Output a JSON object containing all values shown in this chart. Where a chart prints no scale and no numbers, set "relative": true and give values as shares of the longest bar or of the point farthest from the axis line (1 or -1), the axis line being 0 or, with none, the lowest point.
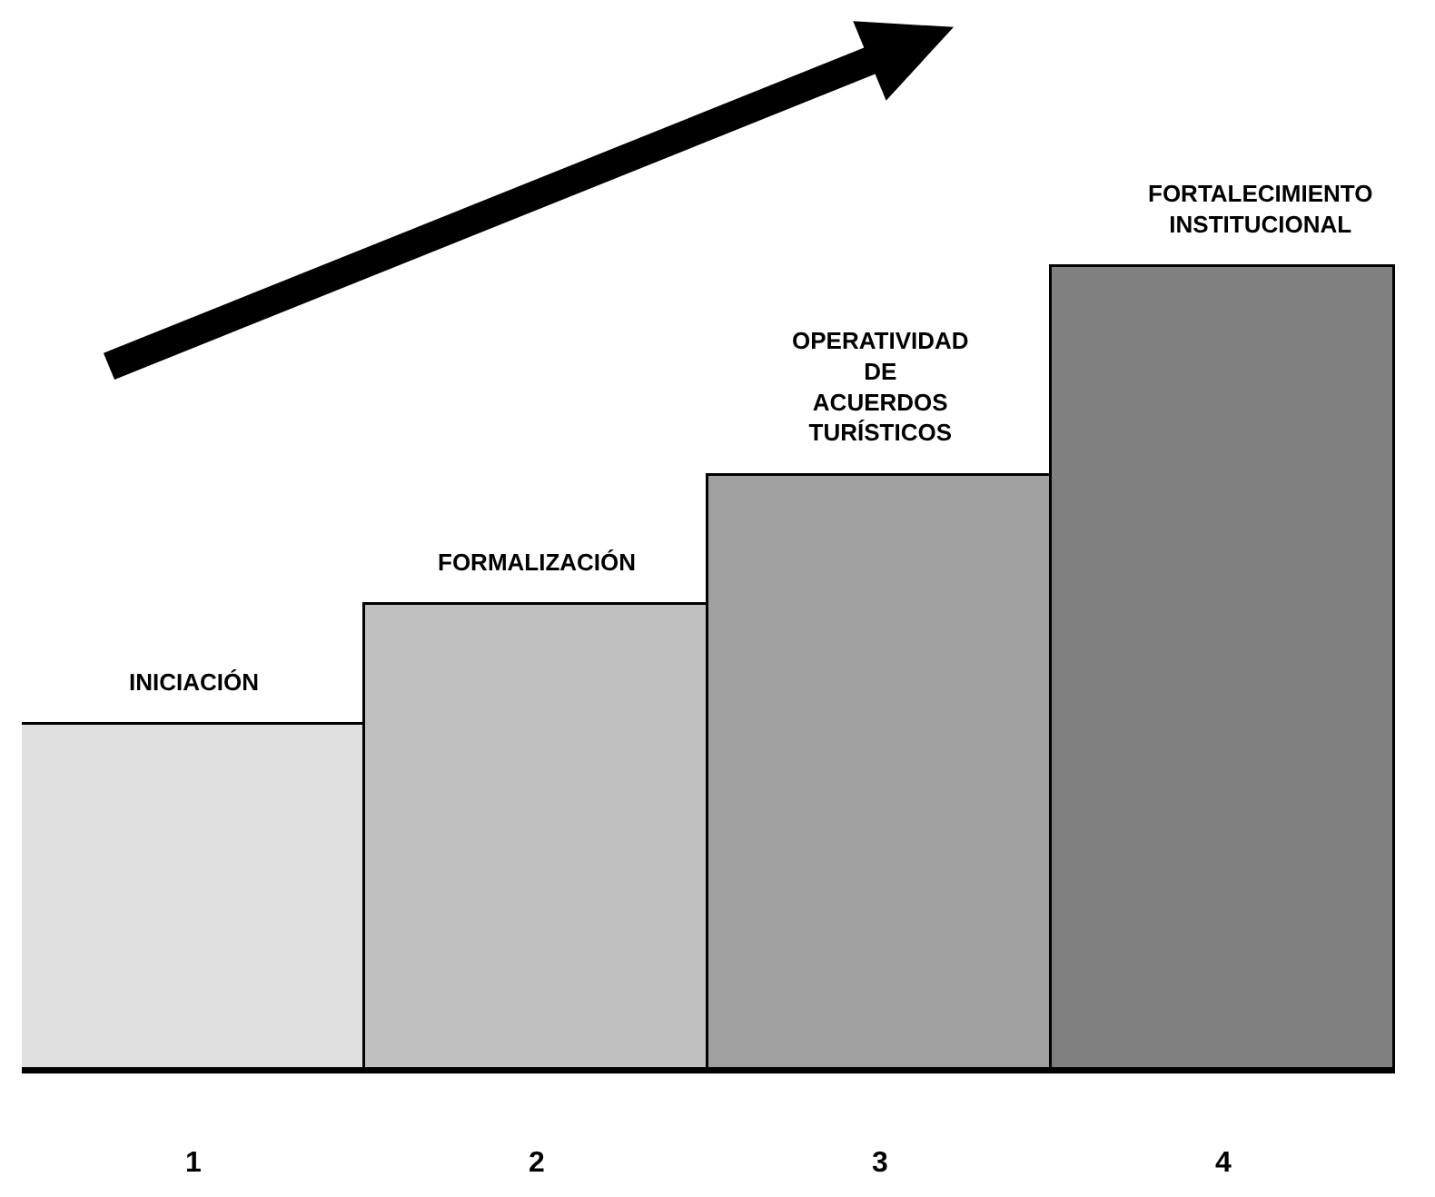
{
  "chart_data": {
    "type": "bar",
    "relative": true,
    "categories": [
      "1",
      "2",
      "3",
      "4"
    ],
    "values": [
      0.43,
      0.58,
      0.74,
      1
    ],
    "colors": [
      "#e0e0e0",
      "#c0c0c0",
      "#a0a0a0",
      "#808080"
    ],
    "annotations": [
      {
        "text": "INICIACIÓN",
        "x": "1",
        "y": 0.43
      },
      {
        "text": "FORMALIZACIÓN",
        "x": "2",
        "y": 0.58
      },
      {
        "text": "OPERATIVIDAD\nDE\nACUERDOS\nTURÍSTICOS",
        "x": "3",
        "y": 0.74
      },
      {
        "text": "FORTALECIMIENTO\nINSTITUCIONAL",
        "x": "4",
        "y": 1
      }
    ],
    "legend": false
  }
}
